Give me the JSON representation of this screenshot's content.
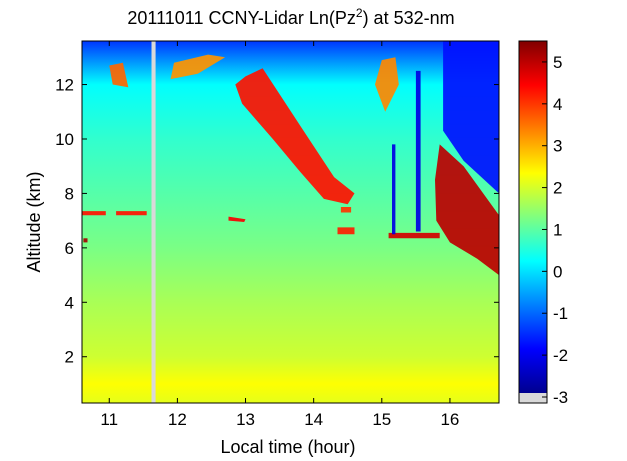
{
  "chart_data": {
    "type": "heatmap",
    "title": {
      "prefix": "20111011 CCNY-Lidar Ln(Pz",
      "sup": "2",
      "suffix": ") at 532-nm"
    },
    "xlabel": "Local time (hour)",
    "ylabel": "Altitude (km)",
    "x_range": [
      10.6,
      16.72
    ],
    "y_range": [
      0.3,
      13.6
    ],
    "x_ticks": [
      11,
      12,
      13,
      14,
      15,
      16
    ],
    "y_ticks": [
      2,
      4,
      6,
      8,
      10,
      12
    ],
    "colorbar": {
      "range": [
        -3,
        5.5
      ],
      "ticks": [
        -3,
        -2,
        -1,
        0,
        1,
        2,
        3,
        4,
        5
      ],
      "colormap": "jet",
      "nodata_color": "#d9d9d9"
    },
    "data_gap": {
      "x_start": 11.62,
      "x_end": 11.68
    },
    "background_value_profile": [
      {
        "altitude": 0.3,
        "value": 2.1
      },
      {
        "altitude": 1.0,
        "value": 2.3
      },
      {
        "altitude": 2.0,
        "value": 1.9
      },
      {
        "altitude": 4.0,
        "value": 1.6
      },
      {
        "altitude": 6.0,
        "value": 1.2
      },
      {
        "altitude": 8.0,
        "value": 0.9
      },
      {
        "altitude": 10.0,
        "value": 0.6
      },
      {
        "altitude": 12.0,
        "value": 0.2
      },
      {
        "altitude": 13.6,
        "value": -1.5
      }
    ],
    "features": [
      {
        "name": "cloud-layer-1",
        "value": 4.3,
        "polygon": [
          [
            13.0,
            12.3
          ],
          [
            13.25,
            12.6
          ],
          [
            13.8,
            10.5
          ],
          [
            14.3,
            8.6
          ],
          [
            14.6,
            8.0
          ],
          [
            14.5,
            7.6
          ],
          [
            14.15,
            7.8
          ],
          [
            13.8,
            8.8
          ],
          [
            13.4,
            10.0
          ],
          [
            12.95,
            11.3
          ],
          [
            12.85,
            12.0
          ]
        ]
      },
      {
        "name": "cloud-layer-2",
        "value": 5.0,
        "polygon": [
          [
            15.85,
            9.8
          ],
          [
            16.2,
            9.0
          ],
          [
            16.72,
            7.2
          ],
          [
            16.72,
            5.0
          ],
          [
            16.4,
            5.6
          ],
          [
            16.0,
            6.2
          ],
          [
            15.8,
            7.0
          ],
          [
            15.78,
            8.5
          ]
        ]
      },
      {
        "name": "cloud-layer-3",
        "value": 3.2,
        "polygon": [
          [
            11.95,
            12.8
          ],
          [
            12.45,
            13.1
          ],
          [
            12.7,
            13.0
          ],
          [
            12.3,
            12.4
          ],
          [
            11.9,
            12.2
          ]
        ]
      },
      {
        "name": "cloud-layer-4",
        "value": 3.3,
        "polygon": [
          [
            15.0,
            12.9
          ],
          [
            15.2,
            13.0
          ],
          [
            15.25,
            12.0
          ],
          [
            15.05,
            11.0
          ],
          [
            14.9,
            12.0
          ]
        ]
      },
      {
        "name": "cloud-layer-5",
        "value": 3.6,
        "polygon": [
          [
            11.0,
            12.7
          ],
          [
            11.2,
            12.8
          ],
          [
            11.28,
            11.9
          ],
          [
            11.05,
            12.0
          ]
        ]
      },
      {
        "name": "aerosol-layer-1",
        "value": 4.3,
        "polygon": [
          [
            10.6,
            7.35
          ],
          [
            10.95,
            7.35
          ],
          [
            10.95,
            7.2
          ],
          [
            10.6,
            7.2
          ]
        ]
      },
      {
        "name": "aerosol-layer-2",
        "value": 4.3,
        "polygon": [
          [
            11.1,
            7.35
          ],
          [
            11.55,
            7.35
          ],
          [
            11.55,
            7.2
          ],
          [
            11.1,
            7.2
          ]
        ]
      },
      {
        "name": "aerosol-layer-3",
        "value": 4.5,
        "polygon": [
          [
            12.75,
            7.15
          ],
          [
            13.0,
            7.05
          ],
          [
            12.98,
            6.95
          ],
          [
            12.75,
            7.0
          ]
        ]
      },
      {
        "name": "aerosol-layer-4",
        "value": 4.8,
        "polygon": [
          [
            15.1,
            6.55
          ],
          [
            15.85,
            6.55
          ],
          [
            15.85,
            6.35
          ],
          [
            15.1,
            6.35
          ]
        ]
      },
      {
        "name": "aerosol-layer-5",
        "value": 4.2,
        "polygon": [
          [
            14.35,
            6.75
          ],
          [
            14.6,
            6.75
          ],
          [
            14.6,
            6.5
          ],
          [
            14.35,
            6.5
          ]
        ]
      },
      {
        "name": "aerosol-layer-6",
        "value": 4.0,
        "polygon": [
          [
            14.4,
            7.5
          ],
          [
            14.55,
            7.5
          ],
          [
            14.55,
            7.3
          ],
          [
            14.4,
            7.3
          ]
        ]
      },
      {
        "name": "aerosol-spot",
        "value": 5.2,
        "polygon": [
          [
            10.62,
            6.35
          ],
          [
            10.68,
            6.35
          ],
          [
            10.68,
            6.2
          ],
          [
            10.62,
            6.2
          ]
        ]
      },
      {
        "name": "clear-column-1",
        "value": -2.2,
        "polygon": [
          [
            15.15,
            9.8
          ],
          [
            15.2,
            9.8
          ],
          [
            15.2,
            6.5
          ],
          [
            15.15,
            6.5
          ]
        ]
      },
      {
        "name": "clear-column-2",
        "value": -2.2,
        "polygon": [
          [
            15.5,
            12.5
          ],
          [
            15.57,
            12.5
          ],
          [
            15.57,
            6.6
          ],
          [
            15.5,
            6.6
          ]
        ]
      },
      {
        "name": "noise-region",
        "value": -1.8,
        "polygon": [
          [
            15.9,
            13.6
          ],
          [
            16.72,
            13.6
          ],
          [
            16.72,
            8.0
          ],
          [
            16.2,
            9.2
          ],
          [
            15.9,
            10.3
          ]
        ]
      }
    ]
  }
}
